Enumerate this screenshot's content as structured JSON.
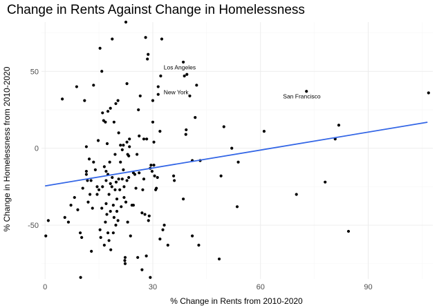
{
  "chart_data": {
    "type": "scatter",
    "title": "Change in Rents Against Change in Homelessness",
    "xlabel": "% Change in Rents from 2010-2020",
    "ylabel": "% Change in Homelessness from 2010-2020",
    "xlim": [
      -1,
      108
    ],
    "ylim": [
      -85,
      82
    ],
    "xticks": [
      0,
      30,
      60,
      90
    ],
    "yticks": [
      -50,
      0,
      50
    ],
    "grid": true,
    "theme": "minimal",
    "point_color": "#000000",
    "trend_color": "#3366e6",
    "trendline": {
      "x": [
        0,
        106.5
      ],
      "y": [
        -24.5,
        16.9
      ]
    },
    "annotations": [
      {
        "text": "Los Angeles",
        "x": 37.5,
        "y": 52.5
      },
      {
        "text": "New York",
        "x": 36.5,
        "y": 36.5
      },
      {
        "text": "San Francisco",
        "x": 71.5,
        "y": 33.8
      }
    ],
    "points": [
      {
        "x": 0.2,
        "y": -57
      },
      {
        "x": 0.9,
        "y": -47
      },
      {
        "x": 4.8,
        "y": 32
      },
      {
        "x": 5.5,
        "y": -45
      },
      {
        "x": 6.5,
        "y": -48
      },
      {
        "x": 7.2,
        "y": -37
      },
      {
        "x": 8.2,
        "y": -32
      },
      {
        "x": 8.8,
        "y": 40
      },
      {
        "x": 9.1,
        "y": -40
      },
      {
        "x": 9.8,
        "y": -55
      },
      {
        "x": 10.2,
        "y": -58
      },
      {
        "x": 9.9,
        "y": -84
      },
      {
        "x": 10.5,
        "y": -26
      },
      {
        "x": 11.0,
        "y": 31
      },
      {
        "x": 11.5,
        "y": 1
      },
      {
        "x": 11.5,
        "y": -15
      },
      {
        "x": 11.5,
        "y": -17
      },
      {
        "x": 11.8,
        "y": -21
      },
      {
        "x": 12.0,
        "y": -35
      },
      {
        "x": 12.3,
        "y": -7
      },
      {
        "x": 12.5,
        "y": -30
      },
      {
        "x": 12.8,
        "y": -21
      },
      {
        "x": 13.2,
        "y": -39
      },
      {
        "x": 12.9,
        "y": -67
      },
      {
        "x": 13.5,
        "y": 41
      },
      {
        "x": 13.5,
        "y": -9
      },
      {
        "x": 14.0,
        "y": -14
      },
      {
        "x": 14.5,
        "y": -25
      },
      {
        "x": 14.5,
        "y": -30
      },
      {
        "x": 14.8,
        "y": 5
      },
      {
        "x": 15.0,
        "y": -27
      },
      {
        "x": 15.3,
        "y": 65
      },
      {
        "x": 15.3,
        "y": -53
      },
      {
        "x": 15.5,
        "y": -58
      },
      {
        "x": 15.8,
        "y": 50
      },
      {
        "x": 15.8,
        "y": -39
      },
      {
        "x": 16.0,
        "y": 23
      },
      {
        "x": 16.0,
        "y": -25
      },
      {
        "x": 16.3,
        "y": 18
      },
      {
        "x": 16.5,
        "y": -12
      },
      {
        "x": 16.5,
        "y": -63
      },
      {
        "x": 16.8,
        "y": 17
      },
      {
        "x": 16.8,
        "y": -48
      },
      {
        "x": 17.0,
        "y": -15
      },
      {
        "x": 17.0,
        "y": -21
      },
      {
        "x": 17.0,
        "y": -36
      },
      {
        "x": 17.2,
        "y": -43
      },
      {
        "x": 17.3,
        "y": 3
      },
      {
        "x": 17.5,
        "y": 24
      },
      {
        "x": 17.5,
        "y": -17
      },
      {
        "x": 17.5,
        "y": -55
      },
      {
        "x": 17.8,
        "y": -30
      },
      {
        "x": 17.8,
        "y": -60
      },
      {
        "x": 18.0,
        "y": -9
      },
      {
        "x": 18.2,
        "y": 26
      },
      {
        "x": 18.2,
        "y": -41
      },
      {
        "x": 18.2,
        "y": -23
      },
      {
        "x": 18.3,
        "y": -66
      },
      {
        "x": 18.6,
        "y": -25
      },
      {
        "x": 18.7,
        "y": -19
      },
      {
        "x": 18.7,
        "y": 71
      },
      {
        "x": 19.0,
        "y": -55
      },
      {
        "x": 19.0,
        "y": -37
      },
      {
        "x": 19.2,
        "y": 17
      },
      {
        "x": 19.2,
        "y": -45
      },
      {
        "x": 19.5,
        "y": -4
      },
      {
        "x": 19.5,
        "y": -27
      },
      {
        "x": 19.7,
        "y": 29
      },
      {
        "x": 19.7,
        "y": -50
      },
      {
        "x": 19.8,
        "y": -22
      },
      {
        "x": 20.0,
        "y": -33
      },
      {
        "x": 20.0,
        "y": -41
      },
      {
        "x": 20.3,
        "y": 31
      },
      {
        "x": 20.3,
        "y": -47
      },
      {
        "x": 20.5,
        "y": 10
      },
      {
        "x": 20.5,
        "y": -20
      },
      {
        "x": 20.8,
        "y": -27
      },
      {
        "x": 21.0,
        "y": 2
      },
      {
        "x": 21.0,
        "y": -9
      },
      {
        "x": 21.2,
        "y": -38
      },
      {
        "x": 21.5,
        "y": -1
      },
      {
        "x": 21.5,
        "y": -20
      },
      {
        "x": 21.8,
        "y": 2
      },
      {
        "x": 21.8,
        "y": -14
      },
      {
        "x": 22.0,
        "y": -25
      },
      {
        "x": 22.0,
        "y": -32
      },
      {
        "x": 22.2,
        "y": -73
      },
      {
        "x": 22.3,
        "y": -75
      },
      {
        "x": 22.3,
        "y": -71
      },
      {
        "x": 22.5,
        "y": 82
      },
      {
        "x": 22.5,
        "y": -35
      },
      {
        "x": 22.8,
        "y": 42
      },
      {
        "x": 22.8,
        "y": 4
      },
      {
        "x": 22.8,
        "y": -21
      },
      {
        "x": 23.0,
        "y": -4
      },
      {
        "x": 23.0,
        "y": -48
      },
      {
        "x": 23.3,
        "y": -5
      },
      {
        "x": 23.3,
        "y": -19
      },
      {
        "x": 23.5,
        "y": 6
      },
      {
        "x": 23.5,
        "y": 1
      },
      {
        "x": 23.8,
        "y": -57
      },
      {
        "x": 24.2,
        "y": -37
      },
      {
        "x": 24.6,
        "y": -16
      },
      {
        "x": 24.6,
        "y": -37
      },
      {
        "x": 25.0,
        "y": -17
      },
      {
        "x": 25.3,
        "y": -26
      },
      {
        "x": 25.6,
        "y": -4
      },
      {
        "x": 25.8,
        "y": -71
      },
      {
        "x": 26.0,
        "y": 25
      },
      {
        "x": 26.2,
        "y": -16
      },
      {
        "x": 26.2,
        "y": 8
      },
      {
        "x": 26.5,
        "y": 34
      },
      {
        "x": 27.0,
        "y": -42
      },
      {
        "x": 27.0,
        "y": -79
      },
      {
        "x": 27.2,
        "y": -27
      },
      {
        "x": 27.5,
        "y": 6
      },
      {
        "x": 27.5,
        "y": -20
      },
      {
        "x": 27.8,
        "y": -43
      },
      {
        "x": 28.0,
        "y": 72
      },
      {
        "x": 28.2,
        "y": -70
      },
      {
        "x": 28.3,
        "y": 6
      },
      {
        "x": 28.5,
        "y": 58
      },
      {
        "x": 28.7,
        "y": 61
      },
      {
        "x": 28.8,
        "y": -47
      },
      {
        "x": 29.0,
        "y": -44
      },
      {
        "x": 29.3,
        "y": -84
      },
      {
        "x": 29.3,
        "y": -13
      },
      {
        "x": 29.5,
        "y": -11
      },
      {
        "x": 29.8,
        "y": -15
      },
      {
        "x": 30.0,
        "y": 31
      },
      {
        "x": 30.0,
        "y": 17
      },
      {
        "x": 30.3,
        "y": 4
      },
      {
        "x": 30.3,
        "y": -11
      },
      {
        "x": 30.5,
        "y": -18
      },
      {
        "x": 30.8,
        "y": -27
      },
      {
        "x": 31.0,
        "y": -26
      },
      {
        "x": 31.3,
        "y": -19
      },
      {
        "x": 31.5,
        "y": 40
      },
      {
        "x": 31.5,
        "y": 35
      },
      {
        "x": 32.0,
        "y": 11
      },
      {
        "x": 32.0,
        "y": -59
      },
      {
        "x": 32.2,
        "y": 47
      },
      {
        "x": 32.5,
        "y": 71
      },
      {
        "x": 32.8,
        "y": -53
      },
      {
        "x": 33.2,
        "y": -50
      },
      {
        "x": 34.2,
        "y": -63
      },
      {
        "x": 35.8,
        "y": -18
      },
      {
        "x": 36.0,
        "y": -21
      },
      {
        "x": 38.5,
        "y": 56
      },
      {
        "x": 38.5,
        "y": -33
      },
      {
        "x": 38.8,
        "y": 47
      },
      {
        "x": 39.2,
        "y": 9
      },
      {
        "x": 39.3,
        "y": 12
      },
      {
        "x": 39.5,
        "y": 48
      },
      {
        "x": 40.3,
        "y": 34
      },
      {
        "x": 41.0,
        "y": -8
      },
      {
        "x": 41.0,
        "y": -57
      },
      {
        "x": 41.8,
        "y": 20
      },
      {
        "x": 42.2,
        "y": 41
      },
      {
        "x": 42.8,
        "y": -63
      },
      {
        "x": 43.2,
        "y": -8
      },
      {
        "x": 48.5,
        "y": -72
      },
      {
        "x": 49.0,
        "y": -18
      },
      {
        "x": 49.8,
        "y": 14
      },
      {
        "x": 52.0,
        "y": 0
      },
      {
        "x": 53.5,
        "y": -38
      },
      {
        "x": 53.8,
        "y": -9
      },
      {
        "x": 61.0,
        "y": 11
      },
      {
        "x": 70.0,
        "y": -30
      },
      {
        "x": 72.8,
        "y": 37
      },
      {
        "x": 78.0,
        "y": -22
      },
      {
        "x": 80.8,
        "y": 6
      },
      {
        "x": 81.8,
        "y": 15
      },
      {
        "x": 84.5,
        "y": -54
      },
      {
        "x": 106.8,
        "y": 36
      }
    ]
  }
}
